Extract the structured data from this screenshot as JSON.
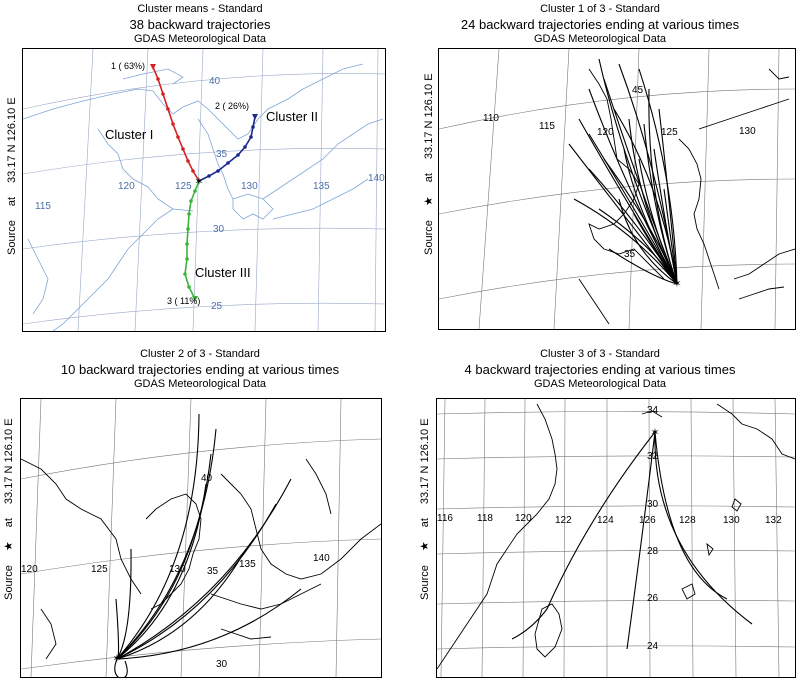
{
  "panels": [
    {
      "title": "Cluster means - Standard",
      "subtitle": "38 backward trajectories",
      "source": "GDAS Meteorological Data",
      "side_label": {
        "source": "Source",
        "at": "at",
        "coords": "33.17 N  126.10 E"
      },
      "lon_labels": [
        "115",
        "120",
        "125",
        "130",
        "135",
        "140"
      ],
      "lat_labels": [
        "40",
        "35",
        "30",
        "25"
      ],
      "clusters": [
        {
          "name": "Cluster I",
          "marker": "1 ( 63%)",
          "color": "#d62020"
        },
        {
          "name": "Cluster II",
          "marker": "2 ( 26%)",
          "color": "#1a2a8c"
        },
        {
          "name": "Cluster III",
          "marker": "3 ( 11%)",
          "color": "#3cb43c"
        }
      ],
      "colors": {
        "coast": "#7fa6d6",
        "grid": "#9aa8c8",
        "labels": "#4a6fa8"
      }
    },
    {
      "title": "Cluster 1 of 3 - Standard",
      "subtitle": "24 backward trajectories ending at various times",
      "source": "GDAS Meteorological Data",
      "side_label": {
        "source": "Source",
        "star": "★",
        "at": "at",
        "coords": "33.17 N  126.10 E"
      },
      "lon_labels": [
        "110",
        "115",
        "120",
        "125",
        "130"
      ],
      "lat_labels": [
        "45",
        "35"
      ]
    },
    {
      "title": "Cluster 2 of 3 - Standard",
      "subtitle": "10 backward trajectories ending at various times",
      "source": "GDAS Meteorological Data",
      "side_label": {
        "source": "Source",
        "star": "★",
        "at": "at",
        "coords": "33.17 N  126.10 E"
      },
      "lon_labels": [
        "120",
        "125",
        "130",
        "135",
        "140"
      ],
      "lat_labels": [
        "40",
        "35",
        "30"
      ]
    },
    {
      "title": "Cluster 3 of 3 - Standard",
      "subtitle": "4 backward trajectories ending at various times",
      "source": "GDAS Meteorological Data",
      "side_label": {
        "source": "Source",
        "star": "★",
        "at": "at",
        "coords": "33.17 N  126.10 E"
      },
      "lon_labels": [
        "116",
        "118",
        "120",
        "122",
        "124",
        "126",
        "128",
        "130",
        "132"
      ],
      "lat_labels": [
        "34",
        "32",
        "30",
        "28",
        "26",
        "24"
      ]
    }
  ]
}
